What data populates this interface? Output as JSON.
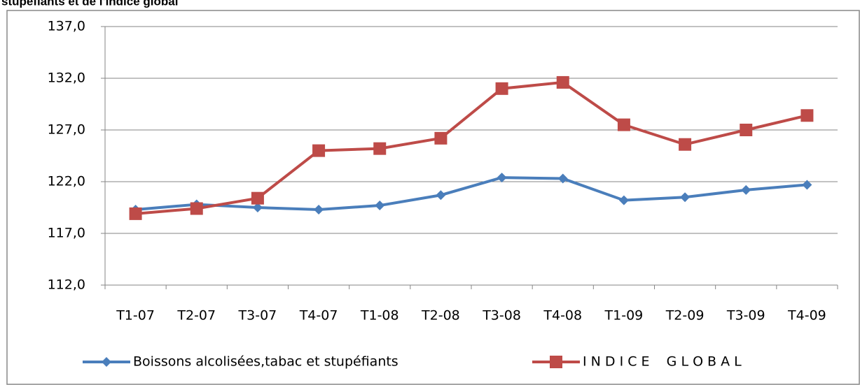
{
  "chart_data": {
    "type": "line",
    "title": "stupéfiants et de l'indice global",
    "categories": [
      "T1-07",
      "T2-07",
      "T3-07",
      "T4-07",
      "T1-08",
      "T2-08",
      "T3-08",
      "T4-08",
      "T1-09",
      "T2-09",
      "T3-09",
      "T4-09"
    ],
    "series": [
      {
        "name": "Boissons alcolisées,tabac et stupéfiants",
        "color": "#4a7ebb",
        "marker": "diamond",
        "values": [
          119.3,
          119.8,
          119.5,
          119.3,
          119.7,
          120.7,
          122.4,
          122.3,
          120.2,
          120.5,
          121.2,
          121.7
        ]
      },
      {
        "name": "I N D I C E    G L O B A L",
        "color": "#be4b48",
        "marker": "square",
        "values": [
          118.9,
          119.4,
          120.4,
          125.0,
          125.2,
          126.2,
          131.0,
          131.6,
          127.5,
          125.6,
          127.0,
          128.4
        ]
      }
    ],
    "ylim": [
      112,
      137
    ],
    "yticks": [
      {
        "value": 112,
        "label": "112,0"
      },
      {
        "value": 117,
        "label": "117,0"
      },
      {
        "value": 122,
        "label": "122,0"
      },
      {
        "value": 127,
        "label": "127,0"
      },
      {
        "value": 132,
        "label": "132,0"
      },
      {
        "value": 137,
        "label": "137,0"
      }
    ],
    "grid": true,
    "legend": "bottom"
  }
}
